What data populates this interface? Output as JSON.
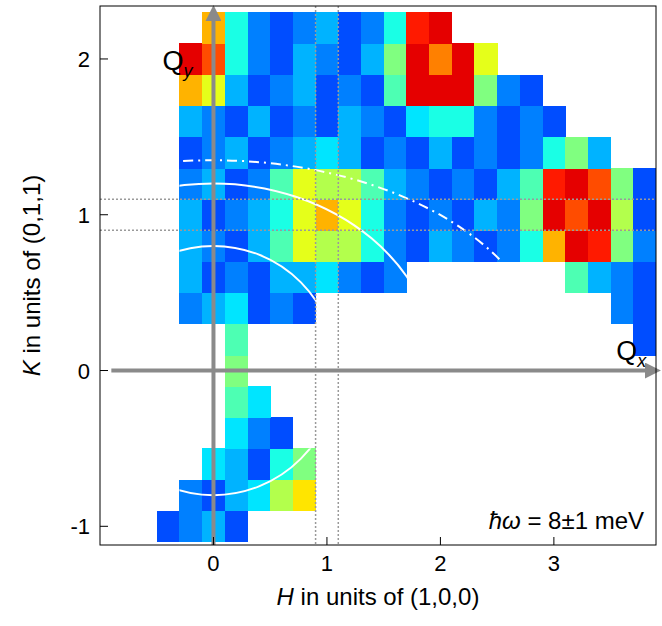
{
  "chart_data": {
    "type": "heatmap",
    "x_label": "H in units of (1,0,0)",
    "y_label": "K in units of (0,1,1)",
    "annotation": "ħω = 8±1 meV",
    "xlim": [
      -1.0,
      3.9
    ],
    "ylim": [
      -1.12,
      2.34
    ],
    "xticks": [
      0,
      1,
      2,
      3
    ],
    "yticks": [
      -1,
      0,
      1,
      2
    ],
    "grid": false,
    "zlim": [
      0,
      10
    ],
    "x": [
      -0.8,
      -0.6,
      -0.4,
      -0.2,
      0.0,
      0.2,
      0.4,
      0.6,
      0.8,
      1.0,
      1.2,
      1.4,
      1.6,
      1.8,
      2.0,
      2.2,
      2.4,
      2.6,
      2.8,
      3.0,
      3.2,
      3.4,
      3.6,
      3.8
    ],
    "y": [
      -1.0,
      -0.8,
      -0.6,
      -0.4,
      -0.2,
      0.0,
      0.2,
      0.4,
      0.6,
      0.8,
      1.0,
      1.2,
      1.4,
      1.6,
      1.8,
      2.0,
      2.2
    ],
    "values": [
      [
        null,
        null,
        2,
        2.5,
        3,
        2,
        null,
        null,
        null,
        null,
        null,
        null,
        null,
        null,
        null,
        null,
        null,
        null,
        null,
        null,
        null,
        null,
        null,
        null
      ],
      [
        null,
        null,
        null,
        2.5,
        2,
        3,
        3.5,
        5.5,
        6.5,
        null,
        null,
        null,
        null,
        null,
        null,
        null,
        null,
        null,
        null,
        null,
        null,
        null,
        null,
        null
      ],
      [
        null,
        null,
        null,
        null,
        3.5,
        3,
        2,
        4,
        5,
        null,
        null,
        null,
        null,
        null,
        null,
        null,
        null,
        null,
        null,
        null,
        null,
        null,
        null,
        null
      ],
      [
        null,
        null,
        null,
        null,
        null,
        3.5,
        2.5,
        2,
        null,
        null,
        null,
        null,
        null,
        null,
        null,
        null,
        null,
        null,
        null,
        null,
        null,
        null,
        null,
        null
      ],
      [
        null,
        null,
        null,
        null,
        null,
        4.5,
        3.5,
        null,
        null,
        null,
        null,
        null,
        null,
        null,
        null,
        null,
        null,
        null,
        null,
        null,
        null,
        null,
        null,
        null
      ],
      [
        null,
        null,
        null,
        null,
        null,
        5,
        null,
        null,
        null,
        null,
        null,
        null,
        null,
        null,
        null,
        null,
        null,
        null,
        null,
        null,
        null,
        null,
        null,
        null
      ],
      [
        null,
        null,
        null,
        null,
        null,
        4.5,
        null,
        null,
        null,
        null,
        null,
        null,
        null,
        null,
        null,
        null,
        null,
        null,
        null,
        null,
        null,
        null,
        null,
        2
      ],
      [
        null,
        null,
        null,
        2.5,
        3,
        3.5,
        2,
        2.5,
        2,
        null,
        null,
        null,
        null,
        null,
        null,
        null,
        null,
        null,
        null,
        null,
        null,
        null,
        2.5,
        2
      ],
      [
        null,
        null,
        null,
        3,
        2,
        2.5,
        2,
        3,
        3,
        3.5,
        2.5,
        2,
        2.5,
        null,
        null,
        null,
        null,
        null,
        null,
        null,
        4.5,
        3,
        2.5,
        2
      ],
      [
        null,
        null,
        null,
        3,
        2.5,
        2,
        3,
        4.5,
        6,
        5.5,
        5.5,
        4,
        2.5,
        2,
        3,
        2.5,
        2,
        2.5,
        4,
        7,
        9,
        8.5,
        5,
        2.5
      ],
      [
        null,
        null,
        null,
        3,
        2,
        2.5,
        3,
        4,
        6,
        7,
        6,
        4,
        2.5,
        2,
        2.5,
        2,
        3,
        2.5,
        5,
        9,
        8,
        9,
        5.5,
        2
      ],
      [
        null,
        null,
        null,
        2.5,
        3,
        2,
        2.5,
        4.5,
        6,
        5.5,
        5.5,
        4.5,
        3,
        2.5,
        2,
        2.5,
        2,
        3,
        4.5,
        8.5,
        9,
        8,
        5,
        2
      ],
      [
        null,
        null,
        null,
        2,
        2.5,
        3,
        2,
        2.5,
        3,
        3.5,
        3,
        2,
        2.5,
        2,
        3,
        2,
        2.5,
        2,
        2.5,
        4,
        5,
        3,
        null,
        null
      ],
      [
        null,
        null,
        null,
        3,
        2.5,
        2,
        3,
        2,
        2.5,
        2,
        3,
        2.5,
        2,
        3.5,
        4,
        4,
        2.5,
        2,
        2.5,
        2,
        null,
        null,
        null,
        null
      ],
      [
        null,
        null,
        null,
        7,
        6,
        3,
        2,
        2.5,
        3,
        2,
        2.5,
        2,
        4.5,
        9,
        9,
        9,
        5,
        2.5,
        2,
        null,
        null,
        null,
        null,
        null
      ],
      [
        null,
        null,
        null,
        9,
        8,
        4,
        2.5,
        2,
        3,
        2.5,
        2,
        3,
        5,
        9,
        7.5,
        9,
        6,
        null,
        null,
        null,
        null,
        null,
        null,
        null
      ],
      [
        null,
        null,
        null,
        null,
        7,
        4,
        2.5,
        2,
        2.5,
        3,
        2,
        2.5,
        4,
        8.5,
        9,
        null,
        null,
        null,
        null,
        null,
        null,
        null,
        null,
        null
      ]
    ],
    "arcs": [
      {
        "a": 1.09,
        "b": 0.8,
        "line_style": "solid"
      },
      {
        "a": 1.97,
        "b": 1.2,
        "line_style": "solid"
      },
      {
        "a": 2.97,
        "b": 1.35,
        "line_style": "dashdot"
      }
    ],
    "guide_lines": {
      "x": [
        0.9,
        1.1
      ],
      "y": [
        0.9,
        1.1
      ],
      "line_style": "dotted"
    },
    "arrows": [
      {
        "text": "Qx",
        "x": [
          -0.9,
          3.88
        ],
        "y": [
          0,
          0
        ],
        "text_x": 3.55,
        "text_y": 0.07
      },
      {
        "text": "Qy",
        "x": [
          0,
          0
        ],
        "y": [
          -1.12,
          2.3
        ],
        "text_x": -0.45,
        "text_y": 1.93
      }
    ]
  }
}
